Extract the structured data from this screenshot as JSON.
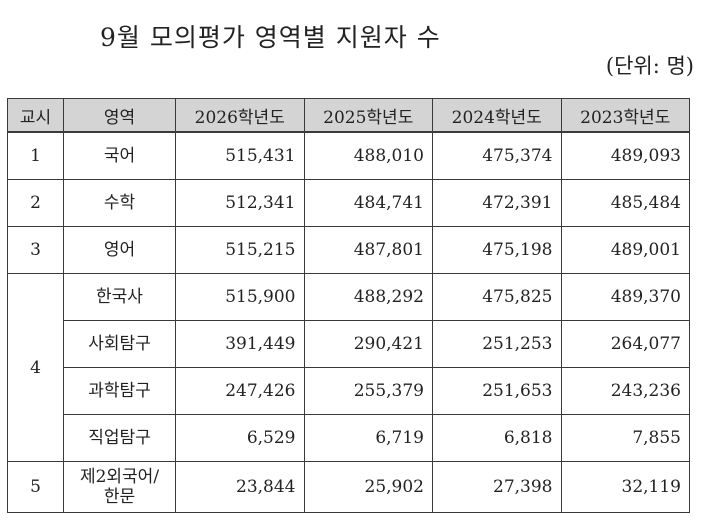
{
  "title": "9월 모의평가 영역별 지원자 수",
  "unit": "(단위: 명)",
  "table": {
    "headers": [
      "교시",
      "영역",
      "2026학년도",
      "2025학년도",
      "2024학년도",
      "2023학년도"
    ],
    "rows": [
      {
        "period": "1",
        "subject": "국어",
        "values": [
          "515,431",
          "488,010",
          "475,374",
          "489,093"
        ]
      },
      {
        "period": "2",
        "subject": "수학",
        "values": [
          "512,341",
          "484,741",
          "472,391",
          "485,484"
        ]
      },
      {
        "period": "3",
        "subject": "영어",
        "values": [
          "515,215",
          "487,801",
          "475,198",
          "489,001"
        ]
      },
      {
        "period": "4",
        "subject": "한국사",
        "values": [
          "515,900",
          "488,292",
          "475,825",
          "489,370"
        ]
      },
      {
        "period": "",
        "subject": "사회탐구",
        "values": [
          "391,449",
          "290,421",
          "251,253",
          "264,077"
        ]
      },
      {
        "period": "",
        "subject": "과학탐구",
        "values": [
          "247,426",
          "255,379",
          "251,653",
          "243,236"
        ]
      },
      {
        "period": "",
        "subject": "직업탐구",
        "values": [
          "6,529",
          "6,719",
          "6,818",
          "7,855"
        ]
      },
      {
        "period": "5",
        "subject_line1": "제2외국어/",
        "subject_line2": "한문",
        "values": [
          "23,844",
          "25,902",
          "27,398",
          "32,119"
        ]
      }
    ]
  }
}
